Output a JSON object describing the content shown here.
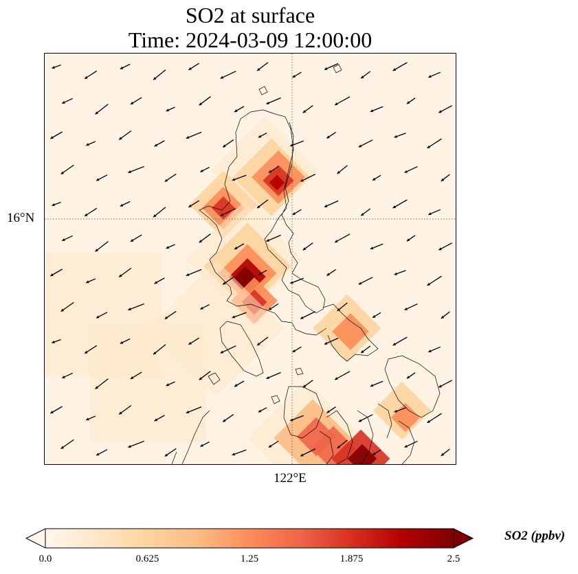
{
  "title": {
    "line1": "SO2 at surface",
    "line2": "Time: 2024-03-09 12:00:00"
  },
  "map": {
    "latitude_label": "16°N",
    "longitude_label": "122°E",
    "gridline_latitude": 16,
    "gridline_longitude": 122,
    "background_color": "#fef3e4",
    "coastline_color": "#000000",
    "wind_vectors": "black arrows, mostly pointing to the west-southwest"
  },
  "colorbar": {
    "label": "SO2 (ppbv)",
    "min": 0.0,
    "max": 2.5,
    "extend": "both",
    "ticks": [
      "0.0",
      "0.625",
      "1.25",
      "1.875",
      "2.5"
    ],
    "colormap": "OrRd",
    "colors": [
      "#fff7ec",
      "#fee8c8",
      "#fdd49e",
      "#fdbb84",
      "#fc8d59",
      "#ef6548",
      "#d7301f",
      "#b30000",
      "#7f0000"
    ]
  }
}
